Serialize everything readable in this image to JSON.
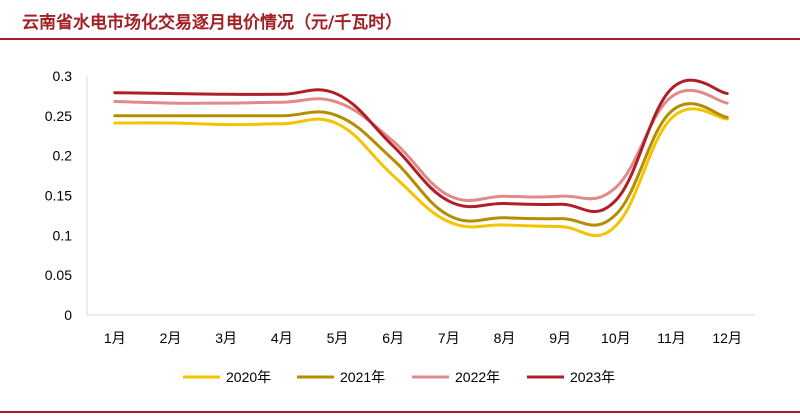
{
  "title": "云南省水电市场化交易逐月电价情况（元/千瓦时）",
  "chart_data": {
    "type": "line",
    "title": "云南省水电市场化交易逐月电价情况（元/千瓦时）",
    "xlabel": "",
    "ylabel": "",
    "categories": [
      "1月",
      "2月",
      "3月",
      "4月",
      "5月",
      "6月",
      "7月",
      "8月",
      "9月",
      "10月",
      "11月",
      "12月"
    ],
    "ylim": [
      0,
      0.3
    ],
    "yticks": [
      0,
      0.05,
      0.1,
      0.15,
      0.2,
      0.25,
      0.3
    ],
    "ytick_labels": [
      "0",
      "0.05",
      "0.1",
      "0.15",
      "0.2",
      "0.25",
      "0.3"
    ],
    "grid": false,
    "legend": "bottom",
    "series": [
      {
        "name": "2020年",
        "color": "#f5c400",
        "values": [
          0.241,
          0.241,
          0.239,
          0.24,
          0.24,
          0.175,
          0.117,
          0.113,
          0.111,
          0.112,
          0.247,
          0.246
        ]
      },
      {
        "name": "2021年",
        "color": "#b58e00",
        "values": [
          0.25,
          0.25,
          0.25,
          0.25,
          0.25,
          0.195,
          0.125,
          0.122,
          0.121,
          0.126,
          0.256,
          0.248
        ]
      },
      {
        "name": "2022年",
        "color": "#e08a8a",
        "values": [
          0.268,
          0.266,
          0.266,
          0.267,
          0.267,
          0.218,
          0.15,
          0.149,
          0.149,
          0.16,
          0.274,
          0.266
        ]
      },
      {
        "name": "2023年",
        "color": "#b01f28",
        "values": [
          0.279,
          0.278,
          0.277,
          0.277,
          0.277,
          0.212,
          0.143,
          0.14,
          0.139,
          0.144,
          0.284,
          0.278
        ]
      }
    ]
  }
}
